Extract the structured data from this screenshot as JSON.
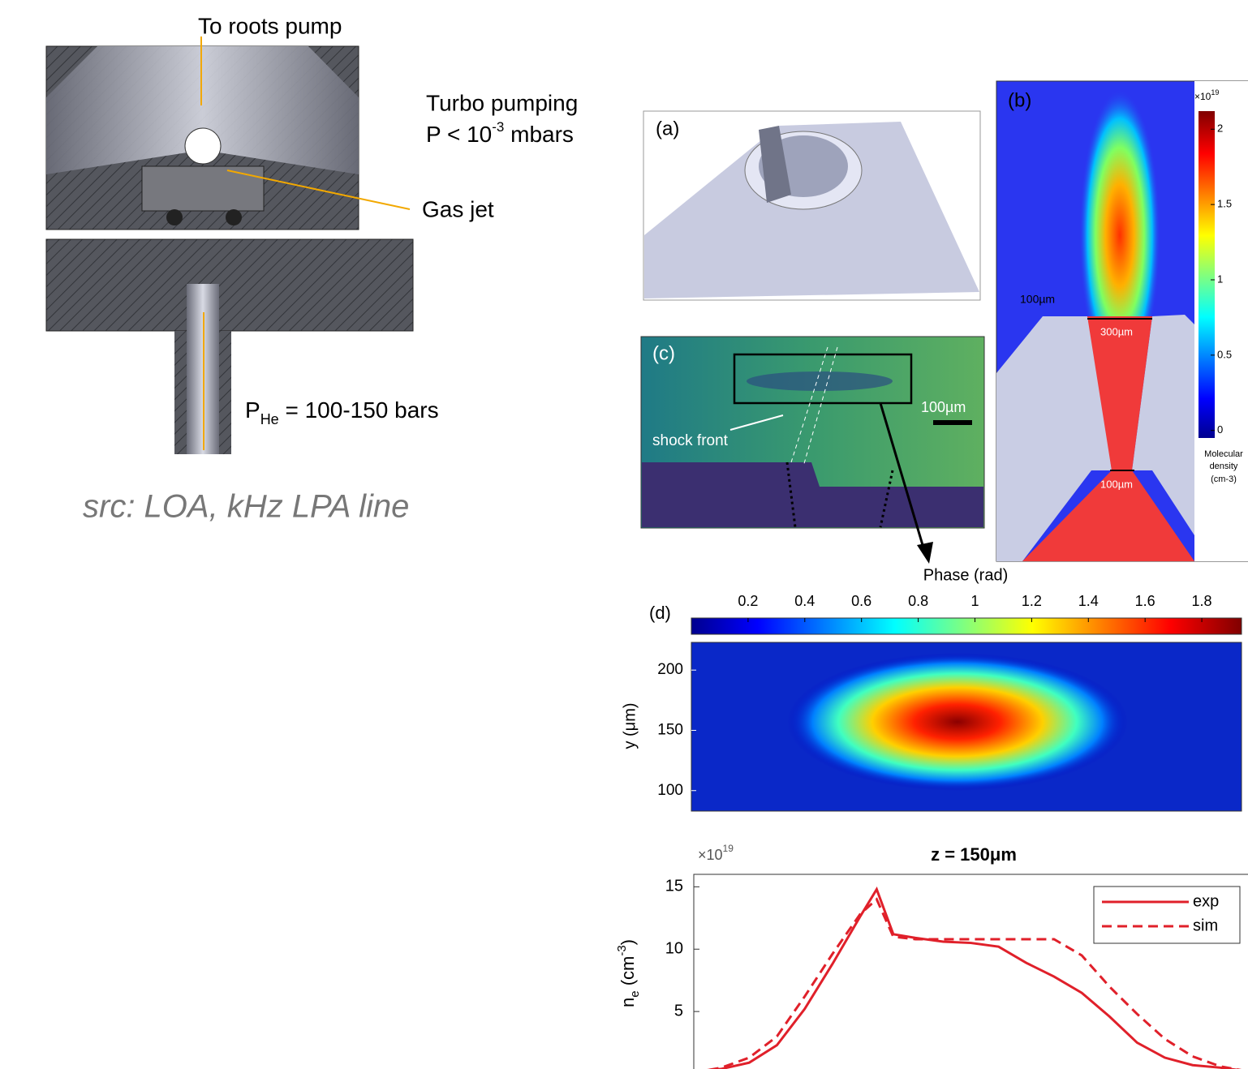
{
  "left": {
    "to_pump": "To roots pump",
    "turbo": "Turbo pumping",
    "pressure": {
      "base": "P < 10",
      "exp": "-3",
      "unit": " mbars"
    },
    "gas_jet": "Gas jet",
    "phe": {
      "p": "P",
      "sub": "He",
      "rest": " = 100-150 bars"
    },
    "source": "src: LOA, kHz LPA line"
  },
  "panel_a": {
    "label": "(a)"
  },
  "panel_b": {
    "label": "(b)",
    "colorbar": {
      "scale_base": "×10",
      "scale_exp": "19",
      "clim": [
        -0.05,
        2.12
      ],
      "ticks": [
        0,
        0.5,
        1,
        1.5,
        2
      ],
      "title": [
        "Molecular",
        "density",
        "(cm-3)"
      ]
    },
    "annotations": [
      "100µm",
      "300µm",
      "100µm"
    ]
  },
  "panel_c": {
    "label": "(c)",
    "shock": "shock front",
    "scale": "100µm"
  },
  "panel_d": {
    "label": "(d)",
    "colorbar_title": "Phase (rad)",
    "clim": [
      0,
      1.94
    ],
    "cticks": [
      0.2,
      0.4,
      0.6,
      0.8,
      1,
      1.2,
      1.4,
      1.6,
      1.8
    ],
    "ylabel": "y (μm)",
    "ylim": [
      83,
      223
    ],
    "yticks": [
      100,
      150,
      200
    ]
  },
  "profile": {
    "type": "line",
    "title": "z = 150μm",
    "scale_base": "×10",
    "scale_exp": "19",
    "ylabel": {
      "n": "n",
      "sub": "e",
      "unit": " (cm",
      "exp": "-3",
      "close": ")"
    },
    "xlim": [
      0,
      100
    ],
    "ylim": [
      0,
      16
    ],
    "yticks": [
      5,
      10,
      15
    ],
    "x": [
      0,
      5,
      10,
      15,
      20,
      25,
      30,
      33,
      36,
      40,
      45,
      50,
      55,
      60,
      65,
      70,
      75,
      80,
      85,
      90,
      95,
      100
    ],
    "series": [
      {
        "name": "exp",
        "color": "#e0202a",
        "dashed": false,
        "values": [
          0.2,
          0.4,
          0.9,
          2.3,
          5.2,
          8.8,
          12.6,
          14.8,
          11.2,
          10.9,
          10.6,
          10.5,
          10.2,
          8.9,
          7.8,
          6.5,
          4.6,
          2.5,
          1.3,
          0.7,
          0.5,
          0.2
        ]
      },
      {
        "name": "sim",
        "color": "#e0202a",
        "dashed": true,
        "values": [
          0.1,
          0.5,
          1.3,
          3.0,
          6.2,
          9.6,
          12.8,
          14.0,
          11.0,
          10.8,
          10.8,
          10.8,
          10.8,
          10.8,
          10.8,
          9.5,
          7.0,
          4.8,
          2.8,
          1.4,
          0.6,
          0.2
        ]
      }
    ]
  }
}
